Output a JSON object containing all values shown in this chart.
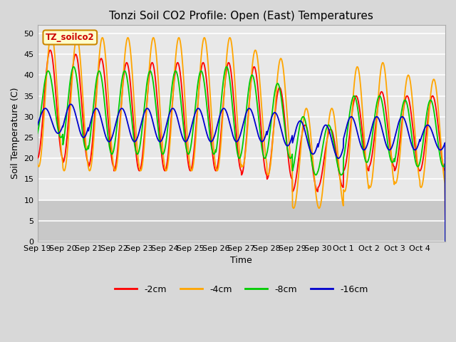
{
  "title": "Tonzi Soil CO2 Profile: Open (East) Temperatures",
  "ylabel": "Soil Temperature (C)",
  "xlabel": "Time",
  "legend_label": "TZ_soilco2",
  "ylim": [
    0,
    52
  ],
  "colors": {
    "-2cm": "#ff0000",
    "-4cm": "#ffa500",
    "-8cm": "#00cc00",
    "-16cm": "#0000cd"
  },
  "legend_items": [
    {
      "label": "-2cm",
      "color": "#ff0000"
    },
    {
      "label": "-4cm",
      "color": "#ffa500"
    },
    {
      "label": "-8cm",
      "color": "#00cc00"
    },
    {
      "label": "-16cm",
      "color": "#0000cd"
    }
  ],
  "bg_color": "#d8d8d8",
  "plot_bg_upper": "#e8e8e8",
  "plot_bg_lower": "#c8c8c8",
  "x_tick_labels": [
    "Sep 19",
    "Sep 20",
    "Sep 21",
    "Sep 22",
    "Sep 23",
    "Sep 24",
    "Sep 25",
    "Sep 26",
    "Sep 27",
    "Sep 28",
    "Sep 29",
    "Sep 30",
    "Oct 1",
    "Oct 2",
    "Oct 3",
    "Oct 4"
  ],
  "num_days": 16,
  "samples_per_day": 96,
  "amplitude_2cm": [
    13,
    13,
    13,
    13,
    13,
    13,
    13,
    13,
    13,
    11,
    8,
    7,
    9,
    9,
    9,
    9
  ],
  "amplitude_4cm": [
    16,
    16,
    16,
    16,
    16,
    16,
    16,
    16,
    14,
    14,
    12,
    12,
    15,
    15,
    13,
    13
  ],
  "amplitude_8cm": [
    8,
    10,
    10,
    10,
    10,
    10,
    10,
    11,
    10,
    9,
    7,
    6,
    8,
    8,
    8,
    8
  ],
  "amplitude_16cm": [
    3,
    4,
    4,
    4,
    4,
    4,
    4,
    4,
    4,
    4,
    4,
    4,
    4,
    4,
    4,
    3
  ],
  "mean_2cm": [
    33,
    32,
    31,
    30,
    30,
    30,
    30,
    30,
    29,
    26,
    20,
    20,
    26,
    27,
    26,
    26
  ],
  "mean_4cm": [
    34,
    33,
    33,
    33,
    33,
    33,
    33,
    33,
    32,
    30,
    20,
    20,
    27,
    28,
    27,
    26
  ],
  "mean_8cm": [
    33,
    32,
    31,
    31,
    31,
    31,
    31,
    31,
    30,
    29,
    23,
    22,
    27,
    27,
    26,
    26
  ],
  "mean_16cm": [
    29,
    29,
    28,
    28,
    28,
    28,
    28,
    28,
    28,
    27,
    25,
    24,
    26,
    26,
    26,
    25
  ],
  "phase_2cm": -1.57,
  "phase_4cm": -1.87,
  "phase_8cm": -1.07,
  "phase_16cm": -0.37
}
